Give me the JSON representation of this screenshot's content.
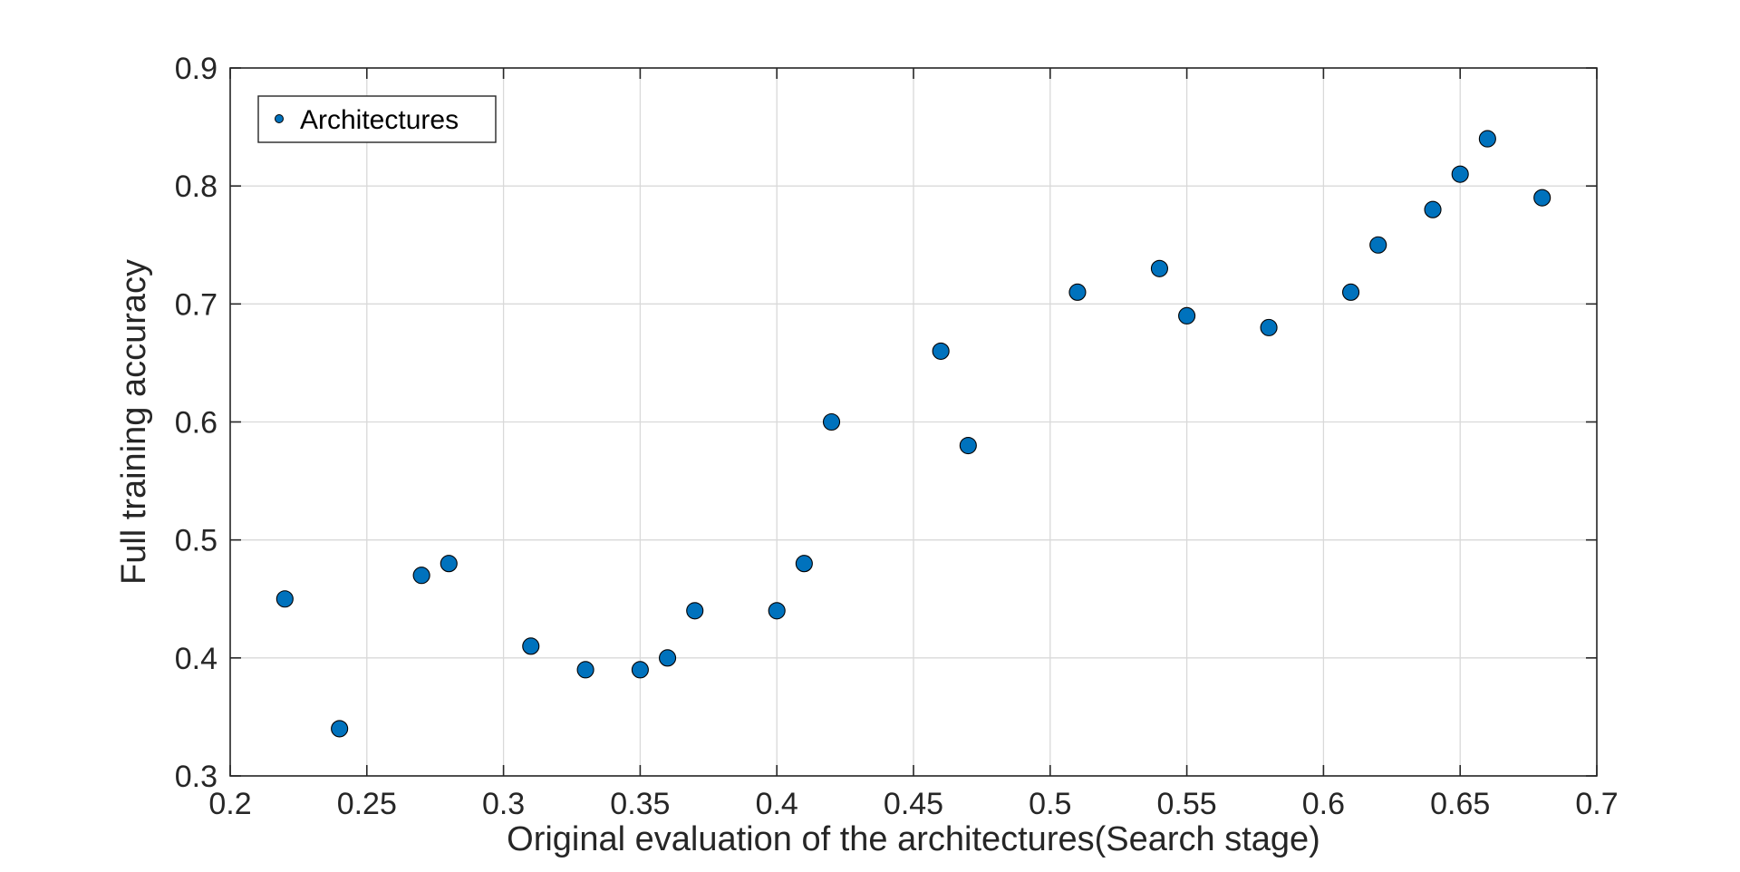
{
  "chart_data": {
    "type": "scatter",
    "title": "",
    "xlabel": "Original evaluation of the architectures(Search stage)",
    "ylabel": "Full training accuracy",
    "xlim": [
      0.2,
      0.7
    ],
    "ylim": [
      0.3,
      0.9
    ],
    "xticks": [
      "0.2",
      "0.25",
      "0.3",
      "0.35",
      "0.4",
      "0.45",
      "0.5",
      "0.55",
      "0.6",
      "0.65",
      "0.7"
    ],
    "yticks": [
      "0.3",
      "0.4",
      "0.5",
      "0.6",
      "0.7",
      "0.8",
      "0.9"
    ],
    "grid": true,
    "legend_position": "top-left",
    "series": [
      {
        "name": "Architectures",
        "color": "#0072bd",
        "x": [
          0.22,
          0.24,
          0.27,
          0.28,
          0.31,
          0.33,
          0.35,
          0.36,
          0.37,
          0.4,
          0.41,
          0.42,
          0.46,
          0.47,
          0.51,
          0.54,
          0.55,
          0.58,
          0.61,
          0.62,
          0.64,
          0.65,
          0.66,
          0.68
        ],
        "y": [
          0.45,
          0.34,
          0.47,
          0.48,
          0.41,
          0.39,
          0.39,
          0.4,
          0.44,
          0.44,
          0.48,
          0.6,
          0.66,
          0.58,
          0.71,
          0.73,
          0.69,
          0.68,
          0.71,
          0.75,
          0.78,
          0.81,
          0.84,
          0.79
        ]
      }
    ]
  }
}
